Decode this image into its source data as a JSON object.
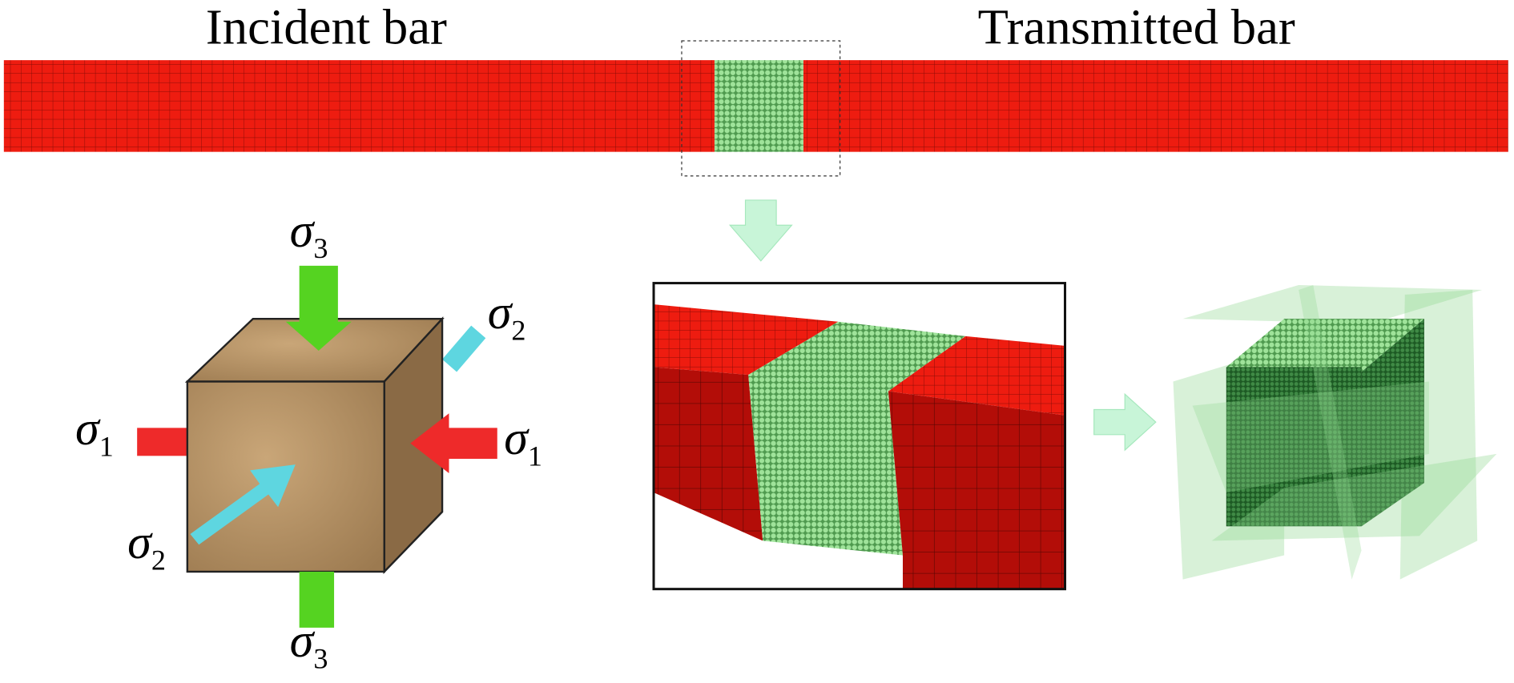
{
  "header": {
    "incident": "Incident bar",
    "transmitted": "Transmitted bar"
  },
  "stresses": [
    {
      "symbol": "σ",
      "index": "3"
    },
    {
      "symbol": "σ",
      "index": "2"
    },
    {
      "symbol": "σ",
      "index": "1"
    },
    {
      "symbol": "σ",
      "index": "1"
    },
    {
      "symbol": "σ",
      "index": "2"
    },
    {
      "symbol": "σ",
      "index": "3"
    }
  ]
}
